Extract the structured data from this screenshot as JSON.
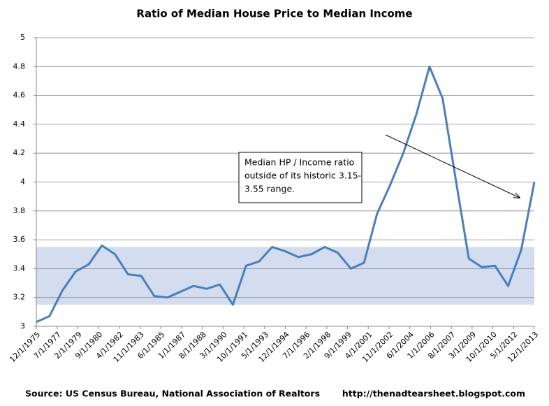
{
  "chart_data": {
    "type": "line",
    "title": "Ratio of Median House Price to Median Income",
    "x": [
      1975.917,
      1976.917,
      1977.917,
      1978.917,
      1979.917,
      1980.917,
      1981.917,
      1982.917,
      1983.917,
      1984.917,
      1985.917,
      1986.917,
      1987.917,
      1988.917,
      1989.917,
      1990.917,
      1991.917,
      1992.917,
      1993.917,
      1994.917,
      1995.917,
      1996.917,
      1997.917,
      1998.917,
      1999.917,
      2000.917,
      2001.917,
      2002.917,
      2003.917,
      2004.917,
      2005.917,
      2006.917,
      2007.917,
      2008.917,
      2009.917,
      2010.917,
      2011.917,
      2012.917,
      2013.917
    ],
    "series": [
      {
        "color": "#4a7ebb",
        "values": [
          3.03,
          3.07,
          3.25,
          3.38,
          3.43,
          3.56,
          3.5,
          3.36,
          3.35,
          3.21,
          3.2,
          3.24,
          3.28,
          3.26,
          3.29,
          3.15,
          3.42,
          3.45,
          3.55,
          3.52,
          3.48,
          3.5,
          3.55,
          3.51,
          3.4,
          3.44,
          3.78,
          3.98,
          4.2,
          4.47,
          4.8,
          4.58,
          4.02,
          3.47,
          3.41,
          3.42,
          3.28,
          3.53,
          4.0
        ]
      }
    ],
    "xlim": [
      1975.917,
      2013.917
    ],
    "xticks": [
      {
        "value": 1975.917,
        "label": "12/1/1975"
      },
      {
        "value": 1977.5,
        "label": "7/1/1977"
      },
      {
        "value": 1979.083,
        "label": "2/1/1979"
      },
      {
        "value": 1980.667,
        "label": "9/1/1980"
      },
      {
        "value": 1982.25,
        "label": "4/1/1982"
      },
      {
        "value": 1983.833,
        "label": "11/1/1983"
      },
      {
        "value": 1985.417,
        "label": "6/1/1985"
      },
      {
        "value": 1987,
        "label": "1/1/1987"
      },
      {
        "value": 1988.583,
        "label": "8/1/1988"
      },
      {
        "value": 1990.167,
        "label": "3/1/1990"
      },
      {
        "value": 1991.75,
        "label": "10/1/1991"
      },
      {
        "value": 1993.333,
        "label": "5/1/1993"
      },
      {
        "value": 1994.917,
        "label": "12/1/1994"
      },
      {
        "value": 1996.5,
        "label": "7/1/1996"
      },
      {
        "value": 1998.083,
        "label": "2/1/1998"
      },
      {
        "value": 1999.667,
        "label": "9/1/1999"
      },
      {
        "value": 2001.25,
        "label": "4/1/2001"
      },
      {
        "value": 2002.833,
        "label": "11/1/2002"
      },
      {
        "value": 2004.417,
        "label": "6/1/2004"
      },
      {
        "value": 2006,
        "label": "1/1/2006"
      },
      {
        "value": 2007.583,
        "label": "8/1/2007"
      },
      {
        "value": 2009.167,
        "label": "3/1/2009"
      },
      {
        "value": 2010.75,
        "label": "10/1/2010"
      },
      {
        "value": 2012.333,
        "label": "5/1/2012"
      },
      {
        "value": 2013.917,
        "label": "12/1/2013"
      }
    ],
    "ylim": [
      3,
      5
    ],
    "yticks": [
      3,
      3.2,
      3.4,
      3.6,
      3.8,
      4,
      4.2,
      4.4,
      4.6,
      4.8,
      5
    ],
    "grid": true,
    "band": [
      3.15,
      3.55
    ],
    "band_color": "#d3ddef",
    "annotation": [
      "Median HP / Income ratio",
      "outside of its historic 3.15-",
      "3.55 range."
    ],
    "source": "Source:   US Census Bureau, National Association of Realtors",
    "credit": "http://thenadtearsheet.blogspot.com"
  }
}
